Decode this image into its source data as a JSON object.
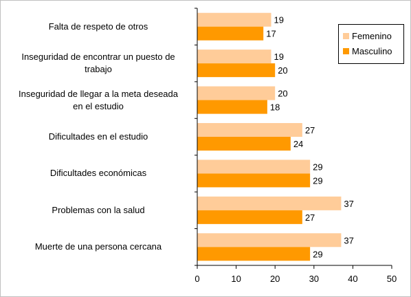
{
  "chart_data": {
    "type": "bar",
    "orientation": "horizontal",
    "categories": [
      [
        "Falta de respeto de otros"
      ],
      [
        "Inseguridad de encontrar un puesto de",
        "trabajo"
      ],
      [
        "Inseguridad de llegar a la meta deseada",
        "en el estudio"
      ],
      [
        "Dificultades en el estudio"
      ],
      [
        "Dificultades económicas"
      ],
      [
        "Problemas con la salud"
      ],
      [
        "Muerte de una persona cercana"
      ]
    ],
    "series": [
      {
        "name": "Femenino",
        "color": "#ffcc99",
        "values": [
          19,
          19,
          20,
          27,
          29,
          37,
          37
        ]
      },
      {
        "name": "Masculino",
        "color": "#ff9900",
        "values": [
          17,
          20,
          18,
          24,
          29,
          27,
          29
        ]
      }
    ],
    "xlim": [
      0,
      50
    ],
    "xticks": [
      "0",
      "10",
      "20",
      "30",
      "40",
      "50"
    ],
    "legend_position": "top-right",
    "grid": false,
    "data_labels": true
  }
}
